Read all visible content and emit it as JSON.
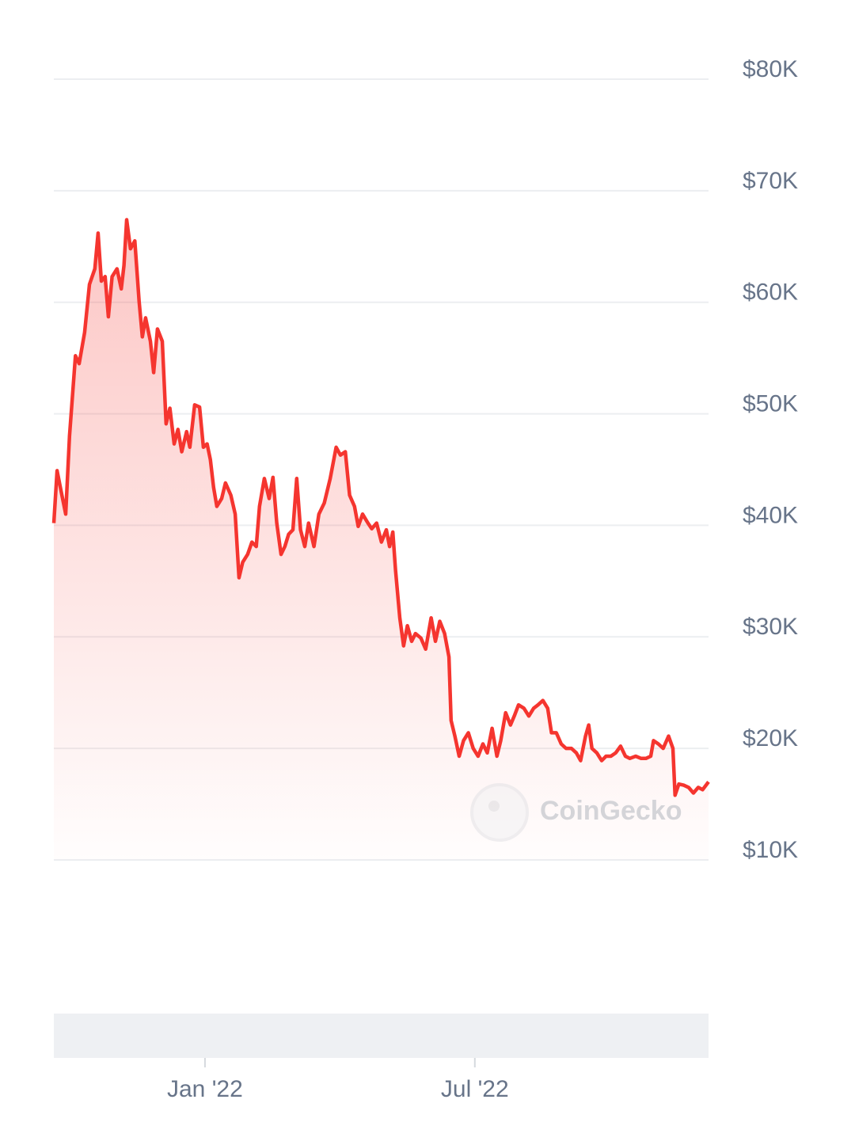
{
  "chart_data": {
    "type": "line",
    "watermark": "CoinGecko",
    "color": "#f5352f",
    "x": [
      2021.72,
      2021.726,
      2021.735,
      2021.742,
      2021.749,
      2021.76,
      2021.767,
      2021.777,
      2021.786,
      2021.796,
      2021.802,
      2021.808,
      2021.815,
      2021.821,
      2021.828,
      2021.837,
      2021.845,
      2021.85,
      2021.855,
      2021.862,
      2021.87,
      2021.878,
      2021.884,
      2021.89,
      2021.899,
      2021.905,
      2021.912,
      2021.921,
      2021.928,
      2021.935,
      2021.943,
      2021.95,
      2021.957,
      2021.966,
      2021.972,
      2021.981,
      2021.99,
      2021.997,
      2022.004,
      2022.01,
      2022.016,
      2022.022,
      2022.031,
      2022.038,
      2022.048,
      2022.056,
      2022.063,
      2022.07,
      2022.079,
      2022.087,
      2022.095,
      2022.101,
      2022.11,
      2022.119,
      2022.126,
      2022.133,
      2022.141,
      2022.148,
      2022.155,
      2022.163,
      2022.17,
      2022.177,
      2022.185,
      2022.192,
      2022.202,
      2022.211,
      2022.221,
      2022.232,
      2022.243,
      2022.251,
      2022.26,
      2022.268,
      2022.277,
      2022.284,
      2022.292,
      2022.302,
      2022.309,
      2022.318,
      2022.327,
      2022.336,
      2022.342,
      2022.348,
      2022.353,
      2022.361,
      2022.368,
      2022.375,
      2022.383,
      2022.39,
      2022.4,
      2022.409,
      2022.419,
      2022.427,
      2022.435,
      2022.444,
      2022.452,
      2022.456,
      2022.463,
      2022.471,
      2022.479,
      2022.488,
      2022.497,
      2022.506,
      2022.515,
      2022.523,
      2022.532,
      2022.541,
      2022.548,
      2022.557,
      2022.566,
      2022.573,
      2022.581,
      2022.591,
      2022.6,
      2022.609,
      2022.617,
      2022.626,
      2022.635,
      2022.642,
      2022.651,
      2022.66,
      2022.669,
      2022.679,
      2022.688,
      2022.696,
      2022.705,
      2022.711,
      2022.717,
      2022.726,
      2022.735,
      2022.743,
      2022.752,
      2022.761,
      2022.77,
      2022.779,
      2022.787,
      2022.798,
      2022.808,
      2022.817,
      2022.826,
      2022.831,
      2022.84,
      2022.849,
      2022.859,
      2022.867,
      2022.871,
      2022.878,
      2022.887,
      2022.896,
      2022.905,
      2022.914,
      2022.922,
      2022.933
    ],
    "values": [
      40200,
      44900,
      42700,
      41000,
      48000,
      55200,
      54500,
      57300,
      61600,
      63000,
      66200,
      61900,
      62300,
      58700,
      62300,
      63000,
      61200,
      63300,
      67400,
      64800,
      65500,
      60100,
      56900,
      58600,
      56500,
      53700,
      57600,
      56500,
      49100,
      50500,
      47300,
      48600,
      46600,
      48400,
      47000,
      50800,
      50600,
      47000,
      47300,
      45900,
      43400,
      41700,
      42400,
      43800,
      42700,
      41000,
      35300,
      36700,
      37400,
      38500,
      38100,
      41700,
      44200,
      42400,
      44300,
      40200,
      37400,
      38100,
      39200,
      39600,
      44200,
      39600,
      38100,
      40200,
      38100,
      41000,
      42000,
      44200,
      47000,
      46300,
      46600,
      42700,
      41700,
      39900,
      41000,
      40200,
      39700,
      40200,
      38500,
      39600,
      38100,
      39400,
      36000,
      31700,
      29200,
      31000,
      29600,
      30300,
      29900,
      28900,
      31700,
      29600,
      31400,
      30300,
      28200,
      22500,
      21100,
      19300,
      20700,
      21400,
      20000,
      19300,
      20400,
      19600,
      21800,
      19300,
      20700,
      23200,
      22100,
      22900,
      23900,
      23600,
      22900,
      23600,
      23900,
      24300,
      23600,
      21400,
      21400,
      20400,
      20000,
      20000,
      19600,
      18900,
      21100,
      22100,
      20000,
      19600,
      18900,
      19300,
      19300,
      19600,
      20200,
      19300,
      19100,
      19300,
      19100,
      19100,
      19300,
      20700,
      20400,
      20000,
      21100,
      20000,
      15800,
      16800,
      16700,
      16500,
      16000,
      16500,
      16300,
      17000
    ],
    "xlim": [
      2021.72,
      2022.933
    ],
    "xticks": [
      {
        "value": 2022,
        "label": "Jan '22"
      },
      {
        "value": 2022.5,
        "label": "Jul '22"
      }
    ],
    "ylim": [
      10000,
      80000
    ],
    "yticks": [
      {
        "value": 80000,
        "label": "$80K"
      },
      {
        "value": 70000,
        "label": "$70K"
      },
      {
        "value": 60000,
        "label": "$60K"
      },
      {
        "value": 50000,
        "label": "$50K"
      },
      {
        "value": 40000,
        "label": "$40K"
      },
      {
        "value": 30000,
        "label": "$30K"
      },
      {
        "value": 20000,
        "label": "$20K"
      },
      {
        "value": 10000,
        "label": "$10K"
      }
    ],
    "grid": true
  }
}
